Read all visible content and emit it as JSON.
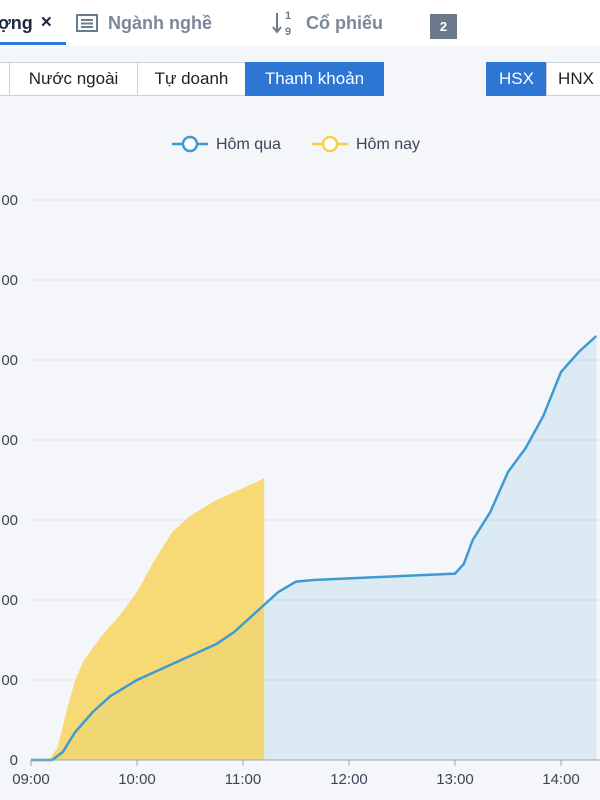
{
  "tabs": [
    {
      "label": "ợng",
      "close": "×",
      "active": true
    },
    {
      "label": "Ngành nghề",
      "icon": "list-icon"
    },
    {
      "label": "Cổ phiếu",
      "icon": "sort-numeric-icon",
      "icon_top": "1",
      "icon_bottom": "9"
    }
  ],
  "badge": "2",
  "filters": [
    "Nước ngoài",
    "Tự doanh",
    "Thanh khoản"
  ],
  "filter_selected": "Thanh khoản",
  "exchanges": [
    "HSX",
    "HNX"
  ],
  "exchange_selected": "HSX",
  "colors": {
    "accent": "#2e76d3",
    "yesterday": "#3d9bd1",
    "today": "#f8cf4a"
  },
  "chart_data": {
    "type": "area",
    "legend_position": "top",
    "series": [
      {
        "name": "Hôm qua",
        "color": "#3d9bd1",
        "points": [
          [
            "09:00",
            0
          ],
          [
            "09:12",
            0
          ],
          [
            "09:18",
            0.1
          ],
          [
            "09:25",
            0.35
          ],
          [
            "09:35",
            0.6
          ],
          [
            "09:45",
            0.8
          ],
          [
            "10:00",
            1.0
          ],
          [
            "10:15",
            1.15
          ],
          [
            "10:30",
            1.3
          ],
          [
            "10:45",
            1.45
          ],
          [
            "10:55",
            1.6
          ],
          [
            "11:00",
            1.7
          ],
          [
            "11:10",
            1.9
          ],
          [
            "11:20",
            2.1
          ],
          [
            "11:30",
            2.23
          ],
          [
            "11:40",
            2.25
          ],
          [
            "12:00",
            2.27
          ],
          [
            "12:30",
            2.3
          ],
          [
            "13:00",
            2.33
          ],
          [
            "13:05",
            2.45
          ],
          [
            "13:10",
            2.75
          ],
          [
            "13:20",
            3.1
          ],
          [
            "13:30",
            3.6
          ],
          [
            "13:40",
            3.9
          ],
          [
            "13:50",
            4.3
          ],
          [
            "14:00",
            4.85
          ],
          [
            "14:10",
            5.1
          ],
          [
            "14:20",
            5.3
          ]
        ]
      },
      {
        "name": "Hôm nay",
        "color": "#f8cf4a",
        "points": [
          [
            "09:00",
            0
          ],
          [
            "09:10",
            0
          ],
          [
            "09:15",
            0.15
          ],
          [
            "09:20",
            0.6
          ],
          [
            "09:25",
            1.0
          ],
          [
            "09:30",
            1.25
          ],
          [
            "09:40",
            1.55
          ],
          [
            "09:50",
            1.8
          ],
          [
            "10:00",
            2.1
          ],
          [
            "10:10",
            2.5
          ],
          [
            "10:20",
            2.85
          ],
          [
            "10:30",
            3.05
          ],
          [
            "10:45",
            3.25
          ],
          [
            "11:00",
            3.4
          ],
          [
            "11:10",
            3.5
          ],
          [
            "11:12",
            3.53
          ]
        ]
      }
    ],
    "x_ticks": [
      "09:00",
      "10:00",
      "11:00",
      "12:00",
      "13:00",
      "14:00"
    ],
    "y_ticks": [
      {
        "value": 0,
        "label": "0"
      },
      {
        "value": 1,
        "label": "00"
      },
      {
        "value": 2,
        "label": "00"
      },
      {
        "value": 3,
        "label": "00"
      },
      {
        "value": 4,
        "label": "00"
      },
      {
        "value": 5,
        "label": "00"
      },
      {
        "value": 6,
        "label": "00"
      },
      {
        "value": 7,
        "label": "00"
      }
    ],
    "x_range": [
      "09:00",
      "14:20"
    ],
    "y_range": [
      0,
      7
    ],
    "grid": true
  }
}
